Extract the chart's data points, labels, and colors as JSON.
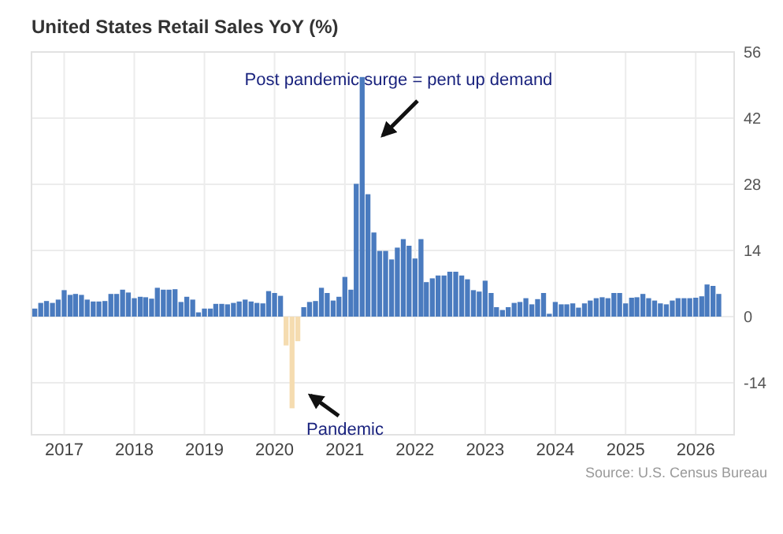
{
  "chart_data": {
    "type": "bar",
    "title": "United States Retail Sales YoY (%)",
    "x": [
      "2016-08",
      "2016-09",
      "2016-10",
      "2016-11",
      "2016-12",
      "2017-01",
      "2017-02",
      "2017-03",
      "2017-04",
      "2017-05",
      "2017-06",
      "2017-07",
      "2017-08",
      "2017-09",
      "2017-10",
      "2017-11",
      "2017-12",
      "2018-01",
      "2018-02",
      "2018-03",
      "2018-04",
      "2018-05",
      "2018-06",
      "2018-07",
      "2018-08",
      "2018-09",
      "2018-10",
      "2018-11",
      "2018-12",
      "2019-01",
      "2019-02",
      "2019-03",
      "2019-04",
      "2019-05",
      "2019-06",
      "2019-07",
      "2019-08",
      "2019-09",
      "2019-10",
      "2019-11",
      "2019-12",
      "2020-01",
      "2020-02",
      "2020-03",
      "2020-04",
      "2020-05",
      "2020-06",
      "2020-07",
      "2020-08",
      "2020-09",
      "2020-10",
      "2020-11",
      "2020-12",
      "2021-01",
      "2021-02",
      "2021-03",
      "2021-04",
      "2021-05",
      "2021-06",
      "2021-07",
      "2021-08",
      "2021-09",
      "2021-10",
      "2021-11",
      "2021-12",
      "2022-01",
      "2022-02",
      "2022-03",
      "2022-04",
      "2022-05",
      "2022-06",
      "2022-07",
      "2022-08",
      "2022-09",
      "2022-10",
      "2022-11",
      "2022-12",
      "2023-01",
      "2023-02",
      "2023-03",
      "2023-04",
      "2023-05",
      "2023-06",
      "2023-07",
      "2023-08",
      "2023-09",
      "2023-10",
      "2023-11",
      "2023-12",
      "2024-01",
      "2024-02",
      "2024-03",
      "2024-04",
      "2024-05",
      "2024-06",
      "2024-07",
      "2024-08",
      "2024-09",
      "2024-10",
      "2024-11",
      "2024-12",
      "2025-01",
      "2025-02",
      "2025-03",
      "2025-04",
      "2025-05",
      "2025-06",
      "2025-07",
      "2025-08",
      "2025-09",
      "2025-10",
      "2025-11",
      "2025-12",
      "2026-01",
      "2026-02",
      "2026-03",
      "2026-04",
      "2026-05"
    ],
    "series": [
      {
        "color": "#4a7bbf",
        "values": [
          1.7,
          2.9,
          3.3,
          2.9,
          3.6,
          5.6,
          4.6,
          4.8,
          4.6,
          3.6,
          3.2,
          3.2,
          3.3,
          4.8,
          4.8,
          5.7,
          5.1,
          3.9,
          4.2,
          4.1,
          3.8,
          6.1,
          5.7,
          5.7,
          5.8,
          3.1,
          4.2,
          3.6,
          0.9,
          1.7,
          1.7,
          2.7,
          2.7,
          2.6,
          2.9,
          3.2,
          3.6,
          3.2,
          2.9,
          2.8,
          5.4,
          5.0,
          4.4,
          null,
          null,
          null,
          2.0,
          3.1,
          3.3,
          6.1,
          5.0,
          3.4,
          4.2,
          8.4,
          5.7,
          28.1,
          50.7,
          25.9,
          17.8,
          13.9,
          13.9,
          12.1,
          14.6,
          16.4,
          15.0,
          12.3,
          16.4,
          7.3,
          8.1,
          8.7,
          8.7,
          9.5,
          9.5,
          8.7,
          7.9,
          5.6,
          5.3,
          7.6,
          5.0,
          2.0,
          1.4,
          2.0,
          2.9,
          3.1,
          3.9,
          2.6,
          3.7,
          5.0,
          0.6,
          3.1,
          2.6,
          2.6,
          2.8,
          1.9,
          2.8,
          3.4,
          3.9,
          4.1,
          3.9,
          5.0,
          5.0,
          2.8,
          4.0,
          4.1,
          4.8,
          3.9,
          3.4,
          2.8,
          2.6,
          3.4,
          3.9,
          3.9,
          3.9,
          4.0,
          4.3,
          6.8,
          6.5,
          4.8
        ]
      },
      {
        "color": "#f5dcb0",
        "values": [
          null,
          null,
          null,
          null,
          null,
          null,
          null,
          null,
          null,
          null,
          null,
          null,
          null,
          null,
          null,
          null,
          null,
          null,
          null,
          null,
          null,
          null,
          null,
          null,
          null,
          null,
          null,
          null,
          null,
          null,
          null,
          null,
          null,
          null,
          null,
          null,
          null,
          null,
          null,
          null,
          null,
          null,
          null,
          -6.1,
          -19.4,
          -5.2,
          null,
          null,
          null,
          null,
          null,
          null,
          null,
          null,
          null,
          null,
          null,
          null,
          null,
          null,
          null,
          null,
          null,
          null,
          null,
          null,
          null,
          null,
          null,
          null,
          null,
          null,
          null,
          null,
          null,
          null,
          null,
          null,
          null,
          null,
          null,
          null,
          null,
          null,
          null,
          null,
          null,
          null,
          null,
          null,
          null,
          null,
          null,
          null,
          null,
          null,
          null,
          null,
          null,
          null,
          null,
          null,
          null,
          null,
          null,
          null,
          null,
          null,
          null,
          null,
          null,
          null,
          null,
          null,
          null,
          null,
          null,
          null
        ]
      }
    ],
    "xlim": [
      "2016-07-15",
      "2026-07-20"
    ],
    "xticks": [
      {
        "value": "2017-01-01",
        "label": "2017"
      },
      {
        "value": "2018-01-01",
        "label": "2018"
      },
      {
        "value": "2019-01-01",
        "label": "2019"
      },
      {
        "value": "2020-01-01",
        "label": "2020"
      },
      {
        "value": "2021-01-01",
        "label": "2021"
      },
      {
        "value": "2022-01-01",
        "label": "2022"
      },
      {
        "value": "2023-01-01",
        "label": "2023"
      },
      {
        "value": "2024-01-01",
        "label": "2024"
      },
      {
        "value": "2025-01-01",
        "label": "2025"
      },
      {
        "value": "2026-01-01",
        "label": "2026"
      }
    ],
    "ylim": [
      -25,
      56
    ],
    "yticks": [
      -14,
      0,
      14,
      28,
      42,
      56
    ],
    "grid": true,
    "annotations": [
      "Post pandemic surge = pent up demand",
      "Pandemic",
      "Source: U.S. Census Bureau"
    ]
  }
}
